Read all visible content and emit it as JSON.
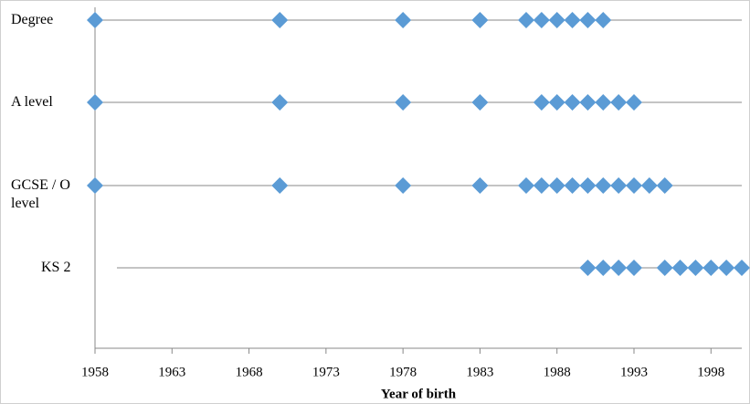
{
  "chart_data": {
    "type": "dot",
    "x_label": "Year of birth",
    "color": "#5b9bd5",
    "xlim": [
      1958,
      2000
    ],
    "xticks": [
      1958,
      1963,
      1968,
      1973,
      1978,
      1983,
      1988,
      1993,
      1998
    ],
    "rows": [
      {
        "label": "Degree",
        "years": [
          1958,
          1970,
          1978,
          1983,
          1986,
          1987,
          1988,
          1989,
          1990,
          1991
        ]
      },
      {
        "label": "A level",
        "years": [
          1958,
          1970,
          1978,
          1983,
          1987,
          1988,
          1989,
          1990,
          1991,
          1992,
          1993
        ]
      },
      {
        "label": "GCSE / O level",
        "years": [
          1958,
          1970,
          1978,
          1983,
          1986,
          1987,
          1988,
          1989,
          1990,
          1991,
          1992,
          1993,
          1994,
          1995
        ]
      },
      {
        "label": "KS 2",
        "years": [
          1990,
          1991,
          1992,
          1993,
          1995,
          1996,
          1997,
          1998,
          1999,
          2000
        ]
      }
    ]
  }
}
